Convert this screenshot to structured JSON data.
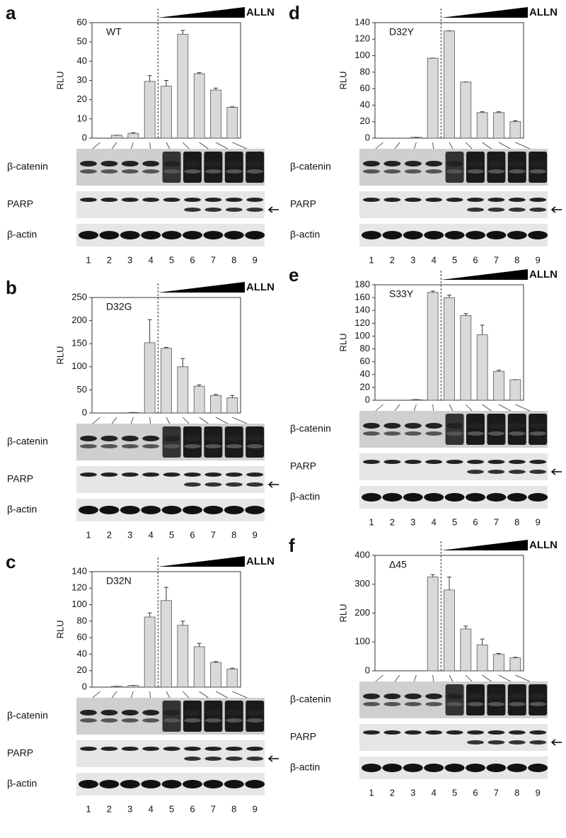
{
  "chart_data": [
    {
      "type": "bar",
      "panel": "a",
      "title": "WT",
      "y_label": "RLU",
      "annotation": "ALLN",
      "color": "#d9d9d9",
      "categories": [
        "1",
        "2",
        "3",
        "4",
        "5",
        "6",
        "7",
        "8",
        "9"
      ],
      "values": [
        0,
        1.5,
        2.5,
        29.5,
        27,
        54,
        33.5,
        25,
        16
      ],
      "errors": [
        0,
        0,
        0.3,
        3,
        3,
        2,
        0.5,
        1,
        0.3
      ],
      "ylim": [
        0,
        60
      ],
      "yticks": [
        0,
        10,
        20,
        30,
        40,
        50,
        60
      ],
      "blots": [
        "β-catenin",
        "PARP",
        "β-actin"
      ]
    },
    {
      "type": "bar",
      "panel": "b",
      "title": "D32G",
      "y_label": "RLU",
      "annotation": "ALLN",
      "color": "#d9d9d9",
      "categories": [
        "1",
        "2",
        "3",
        "4",
        "5",
        "6",
        "7",
        "8",
        "9"
      ],
      "values": [
        0,
        0,
        1,
        152,
        140,
        100,
        58,
        38,
        33
      ],
      "errors": [
        0,
        0,
        0,
        50,
        2,
        18,
        3,
        2,
        5
      ],
      "ylim": [
        0,
        250
      ],
      "yticks": [
        0,
        50,
        100,
        150,
        200,
        250
      ],
      "blots": [
        "β-catenin",
        "PARP",
        "β-actin"
      ]
    },
    {
      "type": "bar",
      "panel": "c",
      "title": "D32N",
      "y_label": "RLU",
      "annotation": "ALLN",
      "color": "#d9d9d9",
      "categories": [
        "1",
        "2",
        "3",
        "4",
        "5",
        "6",
        "7",
        "8",
        "9"
      ],
      "values": [
        0,
        1,
        2,
        85,
        105,
        75,
        49,
        30,
        22
      ],
      "errors": [
        0,
        0,
        0,
        5,
        16,
        5,
        4,
        1,
        1
      ],
      "ylim": [
        0,
        140
      ],
      "yticks": [
        0,
        20,
        40,
        60,
        80,
        100,
        120,
        140
      ],
      "blots": [
        "β-catenin",
        "PARP",
        "β-actin"
      ]
    },
    {
      "type": "bar",
      "panel": "d",
      "title": "D32Y",
      "y_label": "RLU",
      "annotation": "ALLN",
      "color": "#d9d9d9",
      "categories": [
        "1",
        "2",
        "3",
        "4",
        "5",
        "6",
        "7",
        "8",
        "9"
      ],
      "values": [
        0,
        0,
        1,
        97,
        130,
        68,
        31,
        31,
        20
      ],
      "errors": [
        0,
        0,
        0,
        0,
        0,
        0,
        1,
        1,
        1
      ],
      "ylim": [
        0,
        140
      ],
      "yticks": [
        0,
        20,
        40,
        60,
        80,
        100,
        120,
        140
      ],
      "blots": [
        "β-catenin",
        "PARP",
        "β-actin"
      ]
    },
    {
      "type": "bar",
      "panel": "e",
      "title": "S33Y",
      "y_label": "RLU",
      "annotation": "ALLN",
      "color": "#d9d9d9",
      "categories": [
        "1",
        "2",
        "3",
        "4",
        "5",
        "6",
        "7",
        "8",
        "9"
      ],
      "values": [
        0,
        0,
        1,
        168,
        160,
        132,
        102,
        45,
        32
      ],
      "errors": [
        0,
        0,
        0,
        2,
        4,
        3,
        15,
        2,
        0
      ],
      "ylim": [
        0,
        180
      ],
      "yticks": [
        0,
        20,
        40,
        60,
        80,
        100,
        120,
        140,
        160,
        180
      ],
      "blots": [
        "β-catenin",
        "PARP",
        "β-actin"
      ]
    },
    {
      "type": "bar",
      "panel": "f",
      "title": "Δ45",
      "y_label": "RLU",
      "annotation": "ALLN",
      "color": "#d9d9d9",
      "categories": [
        "1",
        "2",
        "3",
        "4",
        "5",
        "6",
        "7",
        "8",
        "9"
      ],
      "values": [
        0,
        0,
        0,
        325,
        280,
        145,
        90,
        57,
        45
      ],
      "errors": [
        0,
        0,
        0,
        8,
        45,
        10,
        20,
        3,
        2
      ],
      "ylim": [
        0,
        400
      ],
      "yticks": [
        0,
        100,
        200,
        300,
        400
      ],
      "blots": [
        "β-catenin",
        "PARP",
        "β-actin"
      ]
    }
  ]
}
